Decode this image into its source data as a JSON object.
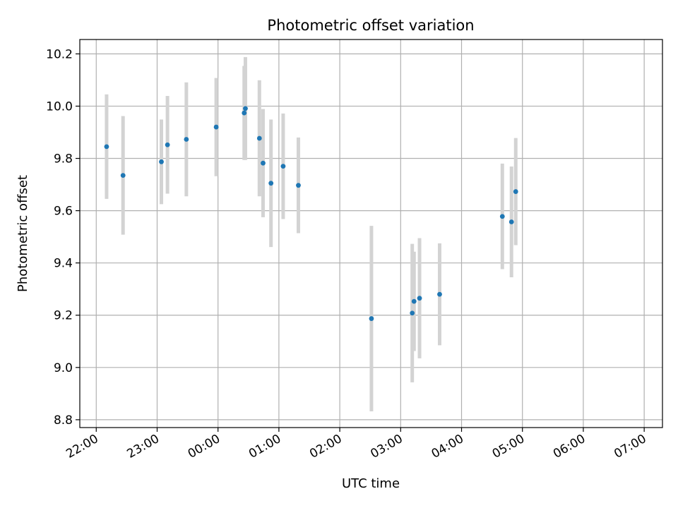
{
  "chart_data": {
    "type": "scatter",
    "title": "Photometric offset variation",
    "xlabel": "UTC time",
    "ylabel": "Photometric offset",
    "x_tick_labels": [
      "22:00",
      "23:00",
      "00:00",
      "01:00",
      "02:00",
      "03:00",
      "04:00",
      "05:00",
      "06:00",
      "07:00"
    ],
    "x_tick_hours": [
      0,
      1,
      2,
      3,
      4,
      5,
      6,
      7,
      8,
      9
    ],
    "x_axis_unit": "hours after 22:00 UTC",
    "xlim": [
      -0.27,
      9.3
    ],
    "y_ticks": [
      8.8,
      9.0,
      9.2,
      9.4,
      9.6,
      9.8,
      10.0,
      10.2
    ],
    "y_tick_labels": [
      "8.8",
      "9.0",
      "9.2",
      "9.4",
      "9.6",
      "9.8",
      "10.0",
      "10.2"
    ],
    "ylim": [
      8.77,
      10.255
    ],
    "grid": true,
    "colors": {
      "point": "#1f77b4",
      "errorbar": "#d3d3d3"
    },
    "points": [
      {
        "x": 0.17,
        "y": 9.845,
        "err": 0.2
      },
      {
        "x": 0.44,
        "y": 9.735,
        "err": 0.227
      },
      {
        "x": 1.07,
        "y": 9.787,
        "err": 0.162
      },
      {
        "x": 1.17,
        "y": 9.852,
        "err": 0.187
      },
      {
        "x": 1.48,
        "y": 9.873,
        "err": 0.218
      },
      {
        "x": 1.97,
        "y": 9.92,
        "err": 0.188
      },
      {
        "x": 2.43,
        "y": 9.974,
        "err": 0.18
      },
      {
        "x": 2.45,
        "y": 9.991,
        "err": 0.197
      },
      {
        "x": 2.68,
        "y": 9.877,
        "err": 0.222
      },
      {
        "x": 2.74,
        "y": 9.782,
        "err": 0.207
      },
      {
        "x": 2.87,
        "y": 9.705,
        "err": 0.244
      },
      {
        "x": 3.07,
        "y": 9.77,
        "err": 0.202
      },
      {
        "x": 3.32,
        "y": 9.697,
        "err": 0.183
      },
      {
        "x": 4.52,
        "y": 9.187,
        "err": 0.355
      },
      {
        "x": 5.19,
        "y": 9.208,
        "err": 0.265
      },
      {
        "x": 5.22,
        "y": 9.253,
        "err": 0.19
      },
      {
        "x": 5.31,
        "y": 9.265,
        "err": 0.23
      },
      {
        "x": 5.64,
        "y": 9.28,
        "err": 0.195
      },
      {
        "x": 6.67,
        "y": 9.578,
        "err": 0.202
      },
      {
        "x": 6.82,
        "y": 9.557,
        "err": 0.212
      },
      {
        "x": 6.89,
        "y": 9.673,
        "err": 0.205
      }
    ]
  }
}
